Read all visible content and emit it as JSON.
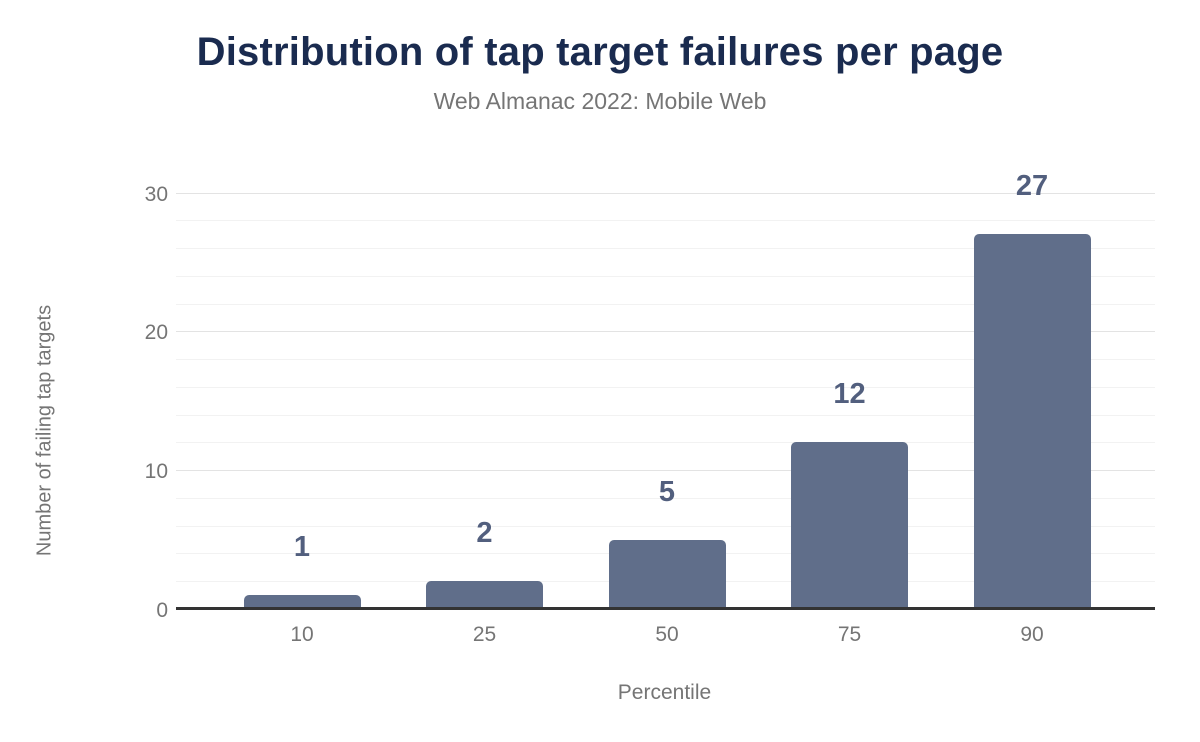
{
  "chart_data": {
    "type": "bar",
    "title": "Distribution of tap target failures per page",
    "subtitle": "Web Almanac 2022: Mobile Web",
    "categories": [
      "10",
      "25",
      "50",
      "75",
      "90"
    ],
    "values": [
      1,
      2,
      5,
      12,
      27
    ],
    "xlabel": "Percentile",
    "ylabel": "Number of failing tap targets",
    "yticks": [
      0,
      10,
      20,
      30
    ],
    "ylim": [
      0,
      30
    ],
    "minor_grid_step": 2,
    "major_grid_step": 10,
    "legend": "none",
    "grid": "on",
    "colors": {
      "bar": "#606e8a",
      "data_label": "#525f7e",
      "title": "#1a2b4f",
      "axis_text": "#757575",
      "axis_line": "#333333",
      "grid_major": "#e3e3e3",
      "grid_minor": "#f2f2f2",
      "background": "#ffffff"
    }
  }
}
